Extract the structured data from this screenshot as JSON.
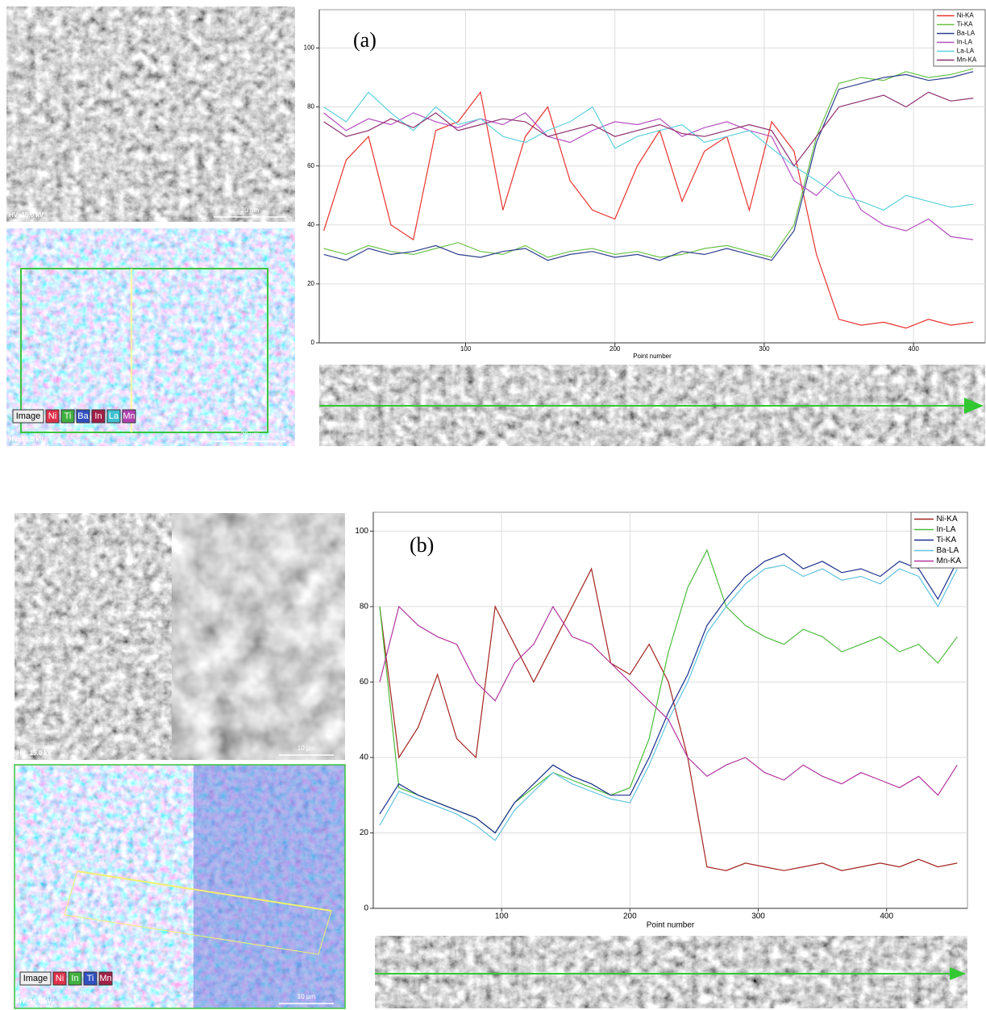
{
  "chart_data": [
    {
      "type": "line",
      "panel_label": "(a)",
      "x_label": "Point number",
      "x": [
        5,
        20,
        35,
        50,
        65,
        80,
        95,
        110,
        125,
        140,
        155,
        170,
        185,
        200,
        215,
        230,
        245,
        260,
        275,
        290,
        305,
        320,
        335,
        350,
        365,
        380,
        395,
        410,
        425,
        440
      ],
      "series": [
        {
          "name": "Ni-KA",
          "color": "#e8322e",
          "values": [
            38,
            62,
            70,
            40,
            35,
            72,
            75,
            85,
            45,
            70,
            80,
            55,
            45,
            42,
            60,
            72,
            48,
            65,
            70,
            45,
            75,
            65,
            30,
            8,
            6,
            7,
            5,
            8,
            6,
            7
          ]
        },
        {
          "name": "Ti-KA",
          "color": "#6cc24a",
          "values": [
            32,
            30,
            33,
            31,
            30,
            32,
            34,
            31,
            30,
            33,
            29,
            31,
            32,
            30,
            31,
            29,
            30,
            32,
            33,
            31,
            29,
            40,
            70,
            88,
            90,
            89,
            92,
            90,
            91,
            93
          ]
        },
        {
          "name": "Ba-LA",
          "color": "#2f3f8f",
          "values": [
            30,
            28,
            32,
            30,
            31,
            33,
            30,
            29,
            31,
            32,
            28,
            30,
            31,
            29,
            30,
            28,
            31,
            30,
            32,
            30,
            28,
            38,
            68,
            86,
            88,
            90,
            91,
            89,
            90,
            92
          ]
        },
        {
          "name": "In-LA",
          "color": "#b550c0",
          "values": [
            78,
            72,
            76,
            74,
            78,
            75,
            73,
            76,
            74,
            78,
            70,
            68,
            72,
            75,
            74,
            76,
            70,
            73,
            75,
            72,
            70,
            55,
            50,
            58,
            45,
            40,
            38,
            42,
            36,
            35
          ]
        },
        {
          "name": "La-LA",
          "color": "#5fd0dc",
          "values": [
            80,
            75,
            85,
            78,
            72,
            80,
            74,
            76,
            70,
            68,
            72,
            75,
            80,
            66,
            70,
            72,
            74,
            68,
            70,
            72,
            66,
            60,
            55,
            50,
            48,
            45,
            50,
            48,
            46,
            47
          ]
        },
        {
          "name": "Mn-KA",
          "color": "#8e2f6e",
          "values": [
            75,
            70,
            72,
            76,
            73,
            78,
            72,
            74,
            76,
            75,
            70,
            72,
            74,
            70,
            72,
            74,
            71,
            70,
            72,
            74,
            72,
            60,
            70,
            80,
            82,
            84,
            80,
            85,
            82,
            83
          ]
        }
      ],
      "xlim": [
        2,
        448
      ],
      "ylim": [
        0,
        113
      ],
      "xticks": [
        100,
        200,
        300,
        400
      ],
      "yticks": [
        0,
        20,
        40,
        60,
        80,
        100
      ],
      "grid": true,
      "legend": "top-right"
    },
    {
      "type": "line",
      "panel_label": "(b)",
      "x_label": "Point number",
      "x": [
        5,
        20,
        35,
        50,
        65,
        80,
        95,
        110,
        125,
        140,
        155,
        170,
        185,
        200,
        215,
        230,
        245,
        260,
        275,
        290,
        305,
        320,
        335,
        350,
        365,
        380,
        395,
        410,
        425,
        440,
        455
      ],
      "series": [
        {
          "name": "Ni-KA",
          "color": "#a3231f",
          "values": [
            80,
            40,
            48,
            62,
            45,
            40,
            80,
            70,
            60,
            70,
            80,
            90,
            65,
            62,
            70,
            60,
            40,
            11,
            10,
            12,
            11,
            10,
            11,
            12,
            10,
            11,
            12,
            11,
            13,
            11,
            12
          ]
        },
        {
          "name": "In-LA",
          "color": "#4cbb3c",
          "values": [
            80,
            32,
            30,
            28,
            26,
            24,
            20,
            28,
            32,
            36,
            34,
            32,
            30,
            32,
            45,
            68,
            85,
            95,
            80,
            75,
            72,
            70,
            74,
            72,
            68,
            70,
            72,
            68,
            70,
            65,
            72
          ]
        },
        {
          "name": "Ti-KA",
          "color": "#1c2e8c",
          "values": [
            25,
            33,
            30,
            28,
            26,
            24,
            20,
            28,
            33,
            38,
            35,
            33,
            30,
            30,
            40,
            52,
            62,
            75,
            82,
            88,
            92,
            94,
            90,
            92,
            89,
            90,
            88,
            92,
            90,
            82,
            92
          ]
        },
        {
          "name": "Ba-LA",
          "color": "#62c3de",
          "values": [
            22,
            31,
            29,
            27,
            25,
            22,
            18,
            26,
            31,
            36,
            33,
            31,
            29,
            28,
            38,
            50,
            60,
            73,
            80,
            86,
            90,
            91,
            88,
            90,
            87,
            88,
            86,
            90,
            88,
            80,
            90
          ]
        },
        {
          "name": "Mn-KA",
          "color": "#b2349e",
          "values": [
            60,
            80,
            75,
            72,
            70,
            60,
            55,
            65,
            70,
            80,
            72,
            70,
            65,
            60,
            55,
            50,
            40,
            35,
            38,
            40,
            36,
            34,
            38,
            35,
            33,
            36,
            34,
            32,
            35,
            30,
            38
          ]
        }
      ],
      "xlim": [
        0,
        463
      ],
      "ylim": [
        0,
        105
      ],
      "xticks": [
        100,
        200,
        300,
        400
      ],
      "yticks": [
        0,
        20,
        40,
        60,
        80,
        100
      ],
      "grid": true,
      "legend": "top-right"
    }
  ],
  "images": [
    {
      "hv": "HV: 15.0 kV",
      "scale": "20 µm"
    },
    {
      "hv": "HV: 15.0 kV",
      "scale": "20 µm",
      "legend": [
        "Image",
        "Ni",
        "Ti",
        "Ba",
        "In",
        "La",
        "Mn"
      ]
    },
    {
      "hv": "HV: 15.0 kV",
      "scale": "10 µm"
    },
    {
      "hv": "HV: 15.0 kV",
      "scale": "10 µm",
      "legend": [
        "Image",
        "Ni",
        "In",
        "Ti",
        "Mn"
      ]
    }
  ]
}
